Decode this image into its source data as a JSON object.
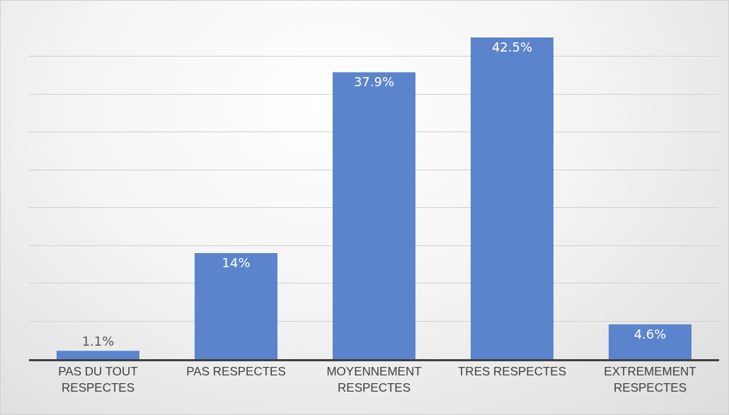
{
  "chart_data": {
    "type": "bar",
    "categories": [
      "PAS DU TOUT RESPECTES",
      "PAS RESPECTES",
      "MOYENNEMENT RESPECTES",
      "TRES RESPECTES",
      "EXTREMEMENT RESPECTES"
    ],
    "values": [
      1.1,
      14,
      37.9,
      42.5,
      4.6
    ],
    "value_labels": [
      "1.1%",
      "14%",
      "37.9%",
      "42.5%",
      "4.6%"
    ],
    "color": "#5b84cc",
    "grid": "y",
    "tick_labels": "x"
  }
}
